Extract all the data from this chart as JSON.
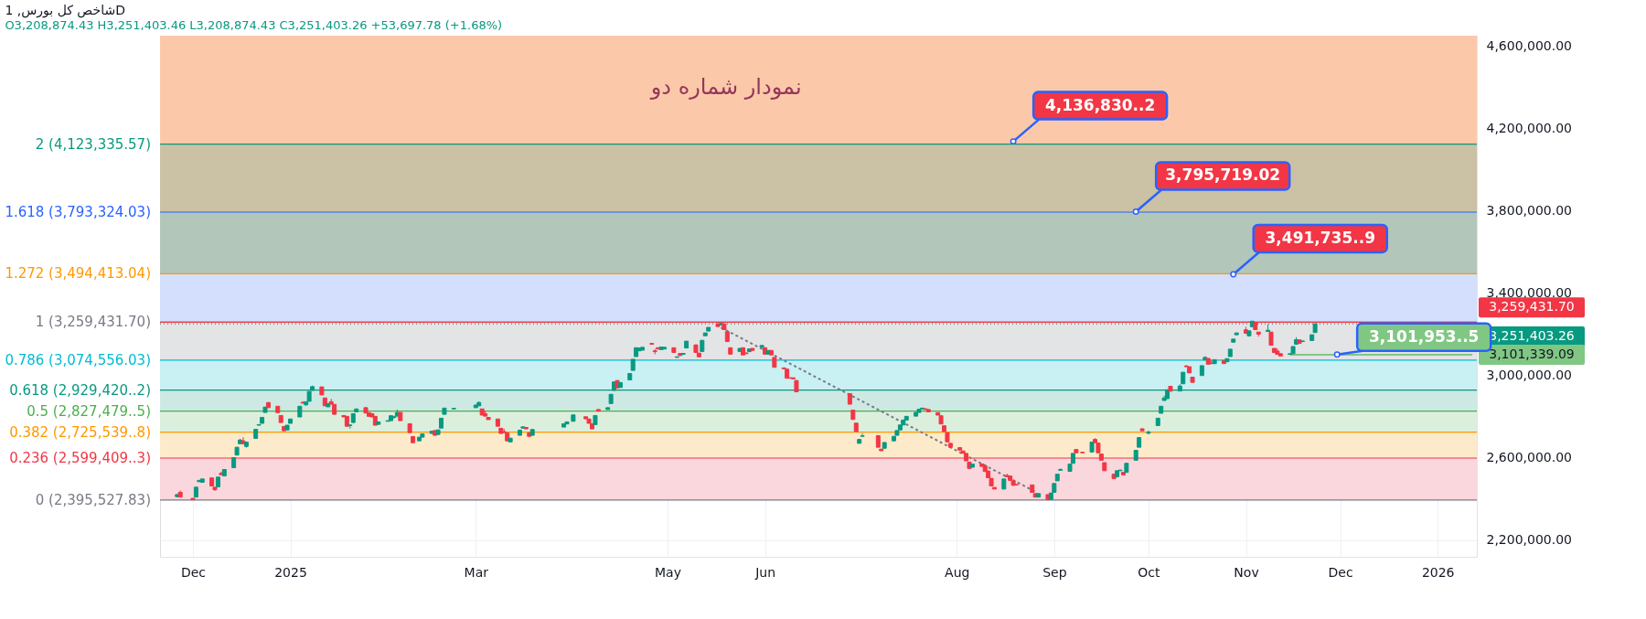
{
  "chart_data": {
    "type": "candlestick",
    "title": "شاخص کل بورس, 1D",
    "subtitle": "O3,208,874.43 H3,251,403.46 L3,208,874.43 C3,251,403.26 +53,697.78 (+1.68%)",
    "x": [
      "2024-11-26",
      "2024-11-27",
      "2024-12-01",
      "2024-12-02",
      "2024-12-03",
      "2024-12-04",
      "2024-12-07",
      "2024-12-08",
      "2024-12-09",
      "2024-12-10",
      "2024-12-11",
      "2024-12-14",
      "2024-12-15",
      "2024-12-16",
      "2024-12-17",
      "2024-12-18",
      "2024-12-21",
      "2024-12-22",
      "2024-12-23",
      "2024-12-24",
      "2024-12-25",
      "2024-12-28",
      "2024-12-29",
      "2024-12-30",
      "2024-12-31",
      "2025-01-01",
      "2025-01-04",
      "2025-01-05",
      "2025-01-06",
      "2025-01-07",
      "2025-01-08",
      "2025-01-11",
      "2025-01-12",
      "2025-01-13",
      "2025-01-14",
      "2025-01-15",
      "2025-01-18",
      "2025-01-19",
      "2025-01-20",
      "2025-01-21",
      "2025-01-22",
      "2025-01-25",
      "2025-01-26",
      "2025-01-27",
      "2025-01-28",
      "2025-01-29",
      "2025-02-01",
      "2025-02-02",
      "2025-02-03",
      "2025-02-04",
      "2025-02-05",
      "2025-02-08",
      "2025-02-09",
      "2025-02-11",
      "2025-02-12",
      "2025-02-15",
      "2025-02-16",
      "2025-02-17",
      "2025-02-18",
      "2025-02-19",
      "2025-02-22",
      "2025-03-01",
      "2025-03-02",
      "2025-03-03",
      "2025-03-04",
      "2025-03-05",
      "2025-03-08",
      "2025-03-09",
      "2025-03-10",
      "2025-03-11",
      "2025-03-12",
      "2025-03-15",
      "2025-03-16",
      "2025-03-17",
      "2025-03-18",
      "2025-03-19",
      "2025-03-29",
      "2025-03-30",
      "2025-04-01",
      "2025-04-05",
      "2025-04-06",
      "2025-04-07",
      "2025-04-08",
      "2025-04-09",
      "2025-04-12",
      "2025-04-13",
      "2025-04-14",
      "2025-04-15",
      "2025-04-16",
      "2025-04-19",
      "2025-04-20",
      "2025-04-21",
      "2025-04-22",
      "2025-04-23",
      "2025-04-26",
      "2025-04-27",
      "2025-04-28",
      "2025-04-29",
      "2025-04-30",
      "2025-05-03",
      "2025-05-04",
      "2025-05-05",
      "2025-05-06",
      "2025-05-07",
      "2025-05-10",
      "2025-05-11",
      "2025-05-12",
      "2025-05-13",
      "2025-05-14",
      "2025-05-17",
      "2025-05-18",
      "2025-05-19",
      "2025-05-20",
      "2025-05-21",
      "2025-05-24",
      "2025-05-25",
      "2025-05-26",
      "2025-05-27",
      "2025-05-28",
      "2025-05-31",
      "2025-06-01",
      "2025-06-02",
      "2025-06-03",
      "2025-06-04",
      "2025-06-07",
      "2025-06-08",
      "2025-06-09",
      "2025-06-10",
      "2025-06-11",
      "2025-06-28",
      "2025-06-29",
      "2025-06-30",
      "2025-07-01",
      "2025-07-02",
      "2025-07-07",
      "2025-07-08",
      "2025-07-09",
      "2025-07-12",
      "2025-07-13",
      "2025-07-14",
      "2025-07-15",
      "2025-07-16",
      "2025-07-19",
      "2025-07-20",
      "2025-07-21",
      "2025-07-22",
      "2025-07-23",
      "2025-07-26",
      "2025-07-27",
      "2025-07-28",
      "2025-07-29",
      "2025-07-30",
      "2025-08-02",
      "2025-08-03",
      "2025-08-04",
      "2025-08-05",
      "2025-08-06",
      "2025-08-09",
      "2025-08-10",
      "2025-08-11",
      "2025-08-12",
      "2025-08-13",
      "2025-08-16",
      "2025-08-17",
      "2025-08-18",
      "2025-08-19",
      "2025-08-20",
      "2025-08-25",
      "2025-08-26",
      "2025-08-27",
      "2025-08-30",
      "2025-08-31",
      "2025-09-01",
      "2025-09-02",
      "2025-09-03",
      "2025-09-06",
      "2025-09-07",
      "2025-09-08",
      "2025-09-10",
      "2025-09-13",
      "2025-09-14",
      "2025-09-15",
      "2025-09-16",
      "2025-09-17",
      "2025-09-20",
      "2025-09-21",
      "2025-09-22",
      "2025-09-23",
      "2025-09-24",
      "2025-09-27",
      "2025-09-28",
      "2025-09-29",
      "2025-10-01",
      "2025-10-04",
      "2025-10-05",
      "2025-10-06",
      "2025-10-07",
      "2025-10-08",
      "2025-10-11",
      "2025-10-12",
      "2025-10-13",
      "2025-10-14",
      "2025-10-15",
      "2025-10-18",
      "2025-10-19",
      "2025-10-20",
      "2025-10-21",
      "2025-10-22",
      "2025-10-25",
      "2025-10-26",
      "2025-10-27",
      "2025-10-28",
      "2025-10-29",
      "2025-11-01",
      "2025-11-02",
      "2025-11-03",
      "2025-11-04",
      "2025-11-05",
      "2025-11-08",
      "2025-11-09",
      "2025-11-10",
      "2025-11-11",
      "2025-11-12",
      "2025-11-15",
      "2025-11-16",
      "2025-11-17",
      "2025-11-18",
      "2025-11-19",
      "2025-11-22",
      "2025-11-23"
    ],
    "ohlc": [
      [
        2412000,
        2425000,
        2410000,
        2422000
      ],
      [
        2433000,
        2442000,
        2410000,
        2410000
      ],
      [
        2404000,
        2405000,
        2396000,
        2397000
      ],
      [
        2410000,
        2459000,
        2409000,
        2458000
      ],
      [
        2485000,
        2493000,
        2483000,
        2491000
      ],
      [
        2482000,
        2498000,
        2482000,
        2498000
      ],
      [
        2503000,
        2503000,
        2464000,
        2464000
      ],
      [
        2458000,
        2458000,
        2440000,
        2446000
      ],
      [
        2460000,
        2507000,
        2460000,
        2507000
      ],
      [
        2525000,
        2533000,
        2519000,
        2519000
      ],
      [
        2513000,
        2544000,
        2513000,
        2544000
      ],
      [
        2553000,
        2601000,
        2553000,
        2601000
      ],
      [
        2614000,
        2652000,
        2614000,
        2652000
      ],
      [
        2669000,
        2693000,
        2669000,
        2687000
      ],
      [
        2683000,
        2701000,
        2669000,
        2669000
      ],
      [
        2656000,
        2677000,
        2650000,
        2677000
      ],
      [
        2695000,
        2739000,
        2695000,
        2739000
      ],
      [
        2759000,
        2762000,
        2759000,
        2762000
      ],
      [
        2768000,
        2797000,
        2768000,
        2797000
      ],
      [
        2821000,
        2847000,
        2821000,
        2847000
      ],
      [
        2869000,
        2869000,
        2844000,
        2844000
      ],
      [
        2851000,
        2851000,
        2820000,
        2820000
      ],
      [
        2806000,
        2806000,
        2772000,
        2772000
      ],
      [
        2753000,
        2753000,
        2732000,
        2732000
      ],
      [
        2736000,
        2759000,
        2736000,
        2759000
      ],
      [
        2768000,
        2789000,
        2768000,
        2789000
      ],
      [
        2799000,
        2851000,
        2799000,
        2851000
      ],
      [
        2870000,
        2875000,
        2866000,
        2866000
      ],
      [
        2858000,
        2873000,
        2853000,
        2873000
      ],
      [
        2875000,
        2923000,
        2875000,
        2923000
      ],
      [
        2928000,
        2951000,
        2928000,
        2946000
      ],
      [
        2945000,
        2945000,
        2906000,
        2906000
      ],
      [
        2891000,
        2891000,
        2853000,
        2853000
      ],
      [
        2848000,
        2864000,
        2848000,
        2864000
      ],
      [
        2873000,
        2887000,
        2861000,
        2861000
      ],
      [
        2860000,
        2860000,
        2812000,
        2812000
      ],
      [
        2806000,
        2806000,
        2799000,
        2799000
      ],
      [
        2802000,
        2802000,
        2754000,
        2754000
      ],
      [
        2757000,
        2760000,
        2742000,
        2760000
      ],
      [
        2772000,
        2815000,
        2772000,
        2815000
      ],
      [
        2824000,
        2838000,
        2824000,
        2838000
      ],
      [
        2844000,
        2848000,
        2818000,
        2818000
      ],
      [
        2820000,
        2820000,
        2802000,
        2802000
      ],
      [
        2815000,
        2815000,
        2799000,
        2799000
      ],
      [
        2802000,
        2802000,
        2759000,
        2759000
      ],
      [
        2763000,
        2775000,
        2763000,
        2775000
      ],
      [
        2778000,
        2781000,
        2778000,
        2781000
      ],
      [
        2781000,
        2805000,
        2781000,
        2805000
      ],
      [
        2797000,
        2805000,
        2790000,
        2800000
      ],
      [
        2803000,
        2835000,
        2803000,
        2821000
      ],
      [
        2821000,
        2821000,
        2781000,
        2781000
      ],
      [
        2766000,
        2766000,
        2723000,
        2723000
      ],
      [
        2704000,
        2704000,
        2674000,
        2674000
      ],
      [
        2683000,
        2701000,
        2683000,
        2701000
      ],
      [
        2701000,
        2717000,
        2701000,
        2717000
      ],
      [
        2719000,
        2730000,
        2719000,
        2730000
      ],
      [
        2733000,
        2733000,
        2710000,
        2710000
      ],
      [
        2714000,
        2736000,
        2714000,
        2736000
      ],
      [
        2745000,
        2793000,
        2745000,
        2793000
      ],
      [
        2812000,
        2842000,
        2812000,
        2842000
      ],
      [
        2838000,
        2841000,
        2838000,
        2841000
      ],
      [
        2844000,
        2857000,
        2844000,
        2857000
      ],
      [
        2853000,
        2875000,
        2853000,
        2869000
      ],
      [
        2838000,
        2838000,
        2808000,
        2808000
      ],
      [
        2815000,
        2829000,
        2803000,
        2803000
      ],
      [
        2797000,
        2797000,
        2786000,
        2786000
      ],
      [
        2789000,
        2789000,
        2754000,
        2754000
      ],
      [
        2744000,
        2744000,
        2719000,
        2719000
      ],
      [
        2728000,
        2742000,
        2723000,
        2723000
      ],
      [
        2722000,
        2722000,
        2683000,
        2683000
      ],
      [
        2678000,
        2696000,
        2678000,
        2696000
      ],
      [
        2710000,
        2735000,
        2710000,
        2735000
      ],
      [
        2745000,
        2751000,
        2745000,
        2751000
      ],
      [
        2748000,
        2748000,
        2741000,
        2741000
      ],
      [
        2722000,
        2722000,
        2705000,
        2705000
      ],
      [
        2710000,
        2738000,
        2710000,
        2738000
      ],
      [
        2750000,
        2766000,
        2750000,
        2766000
      ],
      [
        2765000,
        2775000,
        2765000,
        2775000
      ],
      [
        2778000,
        2809000,
        2778000,
        2809000
      ],
      [
        2800000,
        2800000,
        2790000,
        2790000
      ],
      [
        2789000,
        2789000,
        2768000,
        2768000
      ],
      [
        2766000,
        2766000,
        2741000,
        2741000
      ],
      [
        2762000,
        2806000,
        2762000,
        2806000
      ],
      [
        2835000,
        2835000,
        2827000,
        2827000
      ],
      [
        2835000,
        2844000,
        2835000,
        2844000
      ],
      [
        2864000,
        2909000,
        2864000,
        2909000
      ],
      [
        2928000,
        2969000,
        2928000,
        2969000
      ],
      [
        2976000,
        2976000,
        2940000,
        2940000
      ],
      [
        2942000,
        2966000,
        2942000,
        2966000
      ],
      [
        2979000,
        3010000,
        2979000,
        3010000
      ],
      [
        3025000,
        3079000,
        3025000,
        3079000
      ],
      [
        3092000,
        3135000,
        3092000,
        3135000
      ],
      [
        3120000,
        3134000,
        3120000,
        3134000
      ],
      [
        3123000,
        3137000,
        3123000,
        3137000
      ],
      [
        3156000,
        3156000,
        3152000,
        3152000
      ],
      [
        3120000,
        3129000,
        3103000,
        3116000
      ],
      [
        3135000,
        3135000,
        3129000,
        3129000
      ],
      [
        3126000,
        3138000,
        3126000,
        3138000
      ],
      [
        3129000,
        3137000,
        3129000,
        3137000
      ],
      [
        3135000,
        3135000,
        3112000,
        3112000
      ],
      [
        3088000,
        3091000,
        3088000,
        3091000
      ],
      [
        3107000,
        3107000,
        3097000,
        3097000
      ],
      [
        3103000,
        3107000,
        3103000,
        3107000
      ],
      [
        3134000,
        3167000,
        3134000,
        3167000
      ],
      [
        3149000,
        3149000,
        3112000,
        3112000
      ],
      [
        3109000,
        3109000,
        3091000,
        3091000
      ],
      [
        3117000,
        3171000,
        3117000,
        3171000
      ],
      [
        3193000,
        3207000,
        3193000,
        3207000
      ],
      [
        3216000,
        3234000,
        3216000,
        3234000
      ],
      [
        3250000,
        3259000,
        3238000,
        3238000
      ],
      [
        3246000,
        3257000,
        3246000,
        3253000
      ],
      [
        3251000,
        3251000,
        3223000,
        3223000
      ],
      [
        3213000,
        3213000,
        3165000,
        3165000
      ],
      [
        3135000,
        3135000,
        3104000,
        3104000
      ],
      [
        3117000,
        3132000,
        3117000,
        3132000
      ],
      [
        3135000,
        3135000,
        3100000,
        3100000
      ],
      [
        3110000,
        3110000,
        3106000,
        3106000
      ],
      [
        3116000,
        3129000,
        3116000,
        3129000
      ],
      [
        3132000,
        3132000,
        3122000,
        3122000
      ],
      [
        3137000,
        3146000,
        3137000,
        3146000
      ],
      [
        3135000,
        3135000,
        3104000,
        3104000
      ],
      [
        3104000,
        3122000,
        3104000,
        3122000
      ],
      [
        3122000,
        3122000,
        3100000,
        3100000
      ],
      [
        3088000,
        3088000,
        3040000,
        3040000
      ],
      [
        3037000,
        3037000,
        3033000,
        3033000
      ],
      [
        3031000,
        3031000,
        2987000,
        2987000
      ],
      [
        2989000,
        2989000,
        2987000,
        2987000
      ],
      [
        2989000,
        2989000,
        2984000,
        2984000
      ],
      [
        2976000,
        2976000,
        2921000,
        2921000
      ],
      [
        2912000,
        2912000,
        2861000,
        2861000
      ],
      [
        2832000,
        2832000,
        2787000,
        2787000
      ],
      [
        2769000,
        2769000,
        2728000,
        2728000
      ],
      [
        2671000,
        2690000,
        2671000,
        2690000
      ],
      [
        2705000,
        2720000,
        2705000,
        2707000
      ],
      [
        2708000,
        2708000,
        2652000,
        2652000
      ],
      [
        2643000,
        2643000,
        2635000,
        2635000
      ],
      [
        2647000,
        2675000,
        2647000,
        2675000
      ],
      [
        2683000,
        2705000,
        2683000,
        2705000
      ],
      [
        2710000,
        2733000,
        2710000,
        2733000
      ],
      [
        2736000,
        2760000,
        2736000,
        2760000
      ],
      [
        2760000,
        2784000,
        2760000,
        2784000
      ],
      [
        2784000,
        2802000,
        2784000,
        2802000
      ],
      [
        2803000,
        2821000,
        2803000,
        2821000
      ],
      [
        2821000,
        2836000,
        2821000,
        2836000
      ],
      [
        2838000,
        2842000,
        2838000,
        2842000
      ],
      [
        2839000,
        2839000,
        2835000,
        2835000
      ],
      [
        2835000,
        2835000,
        2824000,
        2824000
      ],
      [
        2820000,
        2820000,
        2808000,
        2808000
      ],
      [
        2805000,
        2805000,
        2765000,
        2765000
      ],
      [
        2756000,
        2756000,
        2728000,
        2728000
      ],
      [
        2723000,
        2723000,
        2678000,
        2678000
      ],
      [
        2671000,
        2671000,
        2652000,
        2652000
      ],
      [
        2650000,
        2650000,
        2638000,
        2638000
      ],
      [
        2634000,
        2634000,
        2623000,
        2623000
      ],
      [
        2622000,
        2622000,
        2586000,
        2586000
      ],
      [
        2580000,
        2580000,
        2549000,
        2549000
      ],
      [
        2555000,
        2570000,
        2555000,
        2570000
      ],
      [
        2571000,
        2571000,
        2559000,
        2559000
      ],
      [
        2562000,
        2562000,
        2534000,
        2534000
      ],
      [
        2537000,
        2537000,
        2504000,
        2504000
      ],
      [
        2501000,
        2501000,
        2464000,
        2464000
      ],
      [
        2457000,
        2457000,
        2449000,
        2449000
      ],
      [
        2449000,
        2498000,
        2449000,
        2498000
      ],
      [
        2515000,
        2524000,
        2509000,
        2509000
      ],
      [
        2512000,
        2512000,
        2491000,
        2491000
      ],
      [
        2489000,
        2489000,
        2467000,
        2467000
      ],
      [
        2471000,
        2471000,
        2469000,
        2469000
      ],
      [
        2469000,
        2469000,
        2433000,
        2433000
      ],
      [
        2427000,
        2427000,
        2410000,
        2410000
      ],
      [
        2410000,
        2427000,
        2410000,
        2427000
      ],
      [
        2422000,
        2422000,
        2396000,
        2397000
      ],
      [
        2398000,
        2430000,
        2398000,
        2430000
      ],
      [
        2433000,
        2476000,
        2433000,
        2476000
      ],
      [
        2489000,
        2521000,
        2489000,
        2521000
      ],
      [
        2540000,
        2549000,
        2540000,
        2544000
      ],
      [
        2535000,
        2570000,
        2535000,
        2570000
      ],
      [
        2574000,
        2622000,
        2574000,
        2622000
      ],
      [
        2641000,
        2641000,
        2625000,
        2625000
      ],
      [
        2628000,
        2628000,
        2625000,
        2625000
      ],
      [
        2629000,
        2677000,
        2629000,
        2677000
      ],
      [
        2690000,
        2696000,
        2674000,
        2674000
      ],
      [
        2672000,
        2672000,
        2625000,
        2625000
      ],
      [
        2619000,
        2619000,
        2589000,
        2589000
      ],
      [
        2577000,
        2577000,
        2538000,
        2538000
      ],
      [
        2521000,
        2521000,
        2500000,
        2500000
      ],
      [
        2509000,
        2538000,
        2509000,
        2538000
      ],
      [
        2538000,
        2541000,
        2538000,
        2541000
      ],
      [
        2530000,
        2530000,
        2518000,
        2518000
      ],
      [
        2530000,
        2574000,
        2530000,
        2574000
      ],
      [
        2589000,
        2637000,
        2589000,
        2637000
      ],
      [
        2652000,
        2699000,
        2652000,
        2699000
      ],
      [
        2741000,
        2745000,
        2732000,
        2732000
      ],
      [
        2720000,
        2733000,
        2714000,
        2726000
      ],
      [
        2757000,
        2793000,
        2757000,
        2793000
      ],
      [
        2817000,
        2851000,
        2817000,
        2851000
      ],
      [
        2879000,
        2902000,
        2879000,
        2891000
      ],
      [
        2888000,
        2931000,
        2888000,
        2931000
      ],
      [
        2948000,
        2948000,
        2924000,
        2924000
      ],
      [
        2925000,
        2958000,
        2925000,
        2949000
      ],
      [
        2960000,
        3016000,
        2960000,
        3016000
      ],
      [
        3046000,
        3052000,
        3043000,
        3043000
      ],
      [
        3043000,
        3043000,
        3013000,
        3013000
      ],
      [
        2992000,
        2992000,
        2967000,
        2967000
      ],
      [
        3000000,
        3048000,
        3000000,
        3048000
      ],
      [
        3076000,
        3094000,
        3076000,
        3088000
      ],
      [
        3083000,
        3083000,
        3055000,
        3055000
      ],
      [
        3061000,
        3074000,
        3058000,
        3058000
      ],
      [
        3058000,
        3077000,
        3058000,
        3077000
      ],
      [
        3073000,
        3073000,
        3058000,
        3058000
      ],
      [
        3067000,
        3082000,
        3067000,
        3082000
      ],
      [
        3092000,
        3128000,
        3092000,
        3128000
      ],
      [
        3162000,
        3177000,
        3162000,
        3177000
      ],
      [
        3198000,
        3207000,
        3198000,
        3207000
      ],
      [
        3222000,
        3237000,
        3205000,
        3205000
      ],
      [
        3193000,
        3217000,
        3189000,
        3217000
      ],
      [
        3237000,
        3264000,
        3237000,
        3264000
      ],
      [
        3257000,
        3257000,
        3223000,
        3223000
      ],
      [
        3211000,
        3211000,
        3189000,
        3201000
      ],
      [
        3214000,
        3248000,
        3214000,
        3220000
      ],
      [
        3211000,
        3211000,
        3147000,
        3147000
      ],
      [
        3132000,
        3132000,
        3112000,
        3112000
      ],
      [
        3119000,
        3132000,
        3103000,
        3103000
      ],
      [
        3106000,
        3106000,
        3095000,
        3095000
      ],
      [
        3103000,
        3106000,
        3103000,
        3106000
      ],
      [
        3106000,
        3141000,
        3106000,
        3141000
      ],
      [
        3152000,
        3186000,
        3152000,
        3174000
      ],
      [
        3173000,
        3173000,
        3156000,
        3156000
      ],
      [
        3165000,
        3168000,
        3165000,
        3168000
      ],
      [
        3170000,
        3198000,
        3170000,
        3198000
      ],
      [
        3208874.43,
        3251403.46,
        3208874.43,
        3251403.26
      ]
    ],
    "series": [
      {
        "type": "line",
        "x": [
          "2025-05-18",
          "2025-08-26"
        ],
        "values": [
          3233000,
          2436000
        ],
        "color": "#787b86",
        "line_style": "dashed"
      },
      {
        "type": "line",
        "name": "3,101,339.09",
        "x": [
          "2025-11-15",
          "2026-01-12"
        ],
        "values": [
          3101339.09,
          3101339.09
        ],
        "color": "#81c784"
      }
    ],
    "xlim": [
      "2024-11-22",
      "2026-01-12"
    ],
    "xticks": [
      {
        "value": "2024-12-01",
        "label": "Dec"
      },
      {
        "value": "2025-01-01",
        "label": "2025"
      },
      {
        "value": "2025-03-01",
        "label": "Mar"
      },
      {
        "value": "2025-05-01",
        "label": "May"
      },
      {
        "value": "2025-06-01",
        "label": "Jun"
      },
      {
        "value": "2025-08-01",
        "label": "Aug"
      },
      {
        "value": "2025-09-01",
        "label": "Sep"
      },
      {
        "value": "2025-10-01",
        "label": "Oct"
      },
      {
        "value": "2025-11-01",
        "label": "Nov"
      },
      {
        "value": "2025-12-01",
        "label": "Dec"
      },
      {
        "value": "2026-01-01",
        "label": "2026"
      }
    ],
    "ylim": [
      2120000,
      4650000
    ],
    "yticks": [
      {
        "value": 2200000,
        "label": "2,200,000.00"
      },
      {
        "value": 2600000,
        "label": "2,600,000.00"
      },
      {
        "value": 3000000,
        "label": "3,000,000.00"
      },
      {
        "value": 3400000,
        "label": "3,400,000.00"
      },
      {
        "value": 3800000,
        "label": "3,800,000.00"
      },
      {
        "value": 4200000,
        "label": "4,200,000.00"
      },
      {
        "value": 4600000,
        "label": "4,600,000.00"
      }
    ],
    "grid": true,
    "bands": [
      {
        "axis": "y",
        "from": 2395527.83,
        "to": 2599409,
        "color": "#fad7dc",
        "label": "0 (2,395,527.83)"
      },
      {
        "axis": "y",
        "from": 2599409,
        "to": 2725539,
        "color": "#fdeacb",
        "label": "0.236 (2,599,409..3)"
      },
      {
        "axis": "y",
        "from": 2725539,
        "to": 2827479,
        "color": "#dcefdc",
        "label": "0.382 (2,725,539..8)"
      },
      {
        "axis": "y",
        "from": 2827479,
        "to": 2929420,
        "color": "#cee9e4",
        "label": "0.5 (2,827,479..5)"
      },
      {
        "axis": "y",
        "from": 2929420,
        "to": 3074556.03,
        "color": "#c9f0f3",
        "label": "0.618 (2,929,420..2)"
      },
      {
        "axis": "y",
        "from": 3074556.03,
        "to": 3259431.7,
        "color": "#e3e4e6",
        "label": "0.786 (3,074,556.03)"
      },
      {
        "axis": "y",
        "from": 3259431.7,
        "to": 3494413.04,
        "color": "#d3dffc",
        "label": "1 (3,259,431.70)"
      },
      {
        "axis": "y",
        "from": 3494413.04,
        "to": 3793324.03,
        "color": "#b3c6ba",
        "label": "1.272 (3,494,413.04)"
      },
      {
        "axis": "y",
        "from": 3793324.03,
        "to": 4123335.57,
        "color": "#cbc1a4",
        "label": "1.618 (3,793,324.03)"
      },
      {
        "axis": "y",
        "from": 4123335.57,
        "to": 4650000,
        "color": "#fbc9a9",
        "label": "2 (4,123,335.57)"
      }
    ],
    "ref_lines": [
      {
        "axis": "y",
        "value": 2395527.83,
        "color": "#787b86"
      },
      {
        "axis": "y",
        "value": 2599409,
        "color": "#f23645"
      },
      {
        "axis": "y",
        "value": 2725539,
        "color": "#ff9800"
      },
      {
        "axis": "y",
        "value": 2827479,
        "color": "#4caf50"
      },
      {
        "axis": "y",
        "value": 2929420,
        "color": "#089981"
      },
      {
        "axis": "y",
        "value": 3074556.03,
        "color": "#00bcd4"
      },
      {
        "axis": "y",
        "value": 3259431.7,
        "color": "#787b86"
      },
      {
        "axis": "y",
        "value": 3494413.04,
        "color": "#ff9800"
      },
      {
        "axis": "y",
        "value": 3793324.03,
        "color": "#2962ff"
      },
      {
        "axis": "y",
        "value": 4123335.57,
        "color": "#089981"
      },
      {
        "axis": "y",
        "value": 3259431.7,
        "label": "3,259,431.70",
        "color": "#f23645"
      },
      {
        "axis": "y",
        "value": 3251403.26,
        "label": "3,251,403.26",
        "color": "#089981",
        "line_style": "dotted"
      }
    ],
    "annotations": [
      "نمودار شماره دو",
      {
        "text": "4,136,830..2",
        "x": "2025-08-19",
        "y": 4136830
      },
      {
        "text": "3,795,719.02",
        "x": "2025-09-27",
        "y": 3795719.02
      },
      {
        "text": "3,491,735..9",
        "x": "2025-10-28",
        "y": 3491735
      },
      {
        "text": "3,101,953..5",
        "x": "2025-11-30",
        "y": 3101953
      }
    ]
  }
}
